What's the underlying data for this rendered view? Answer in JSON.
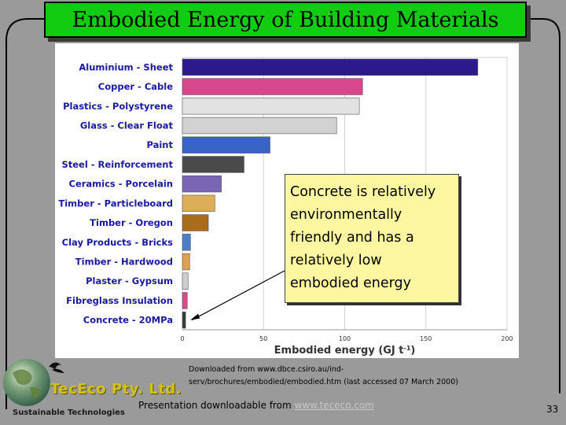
{
  "slide": {
    "title": "Embodied Energy of Building Materials",
    "callout": "Concrete is relatively environmentally friendly and has a relatively low embodied energy",
    "source_line1": "Downloaded from www.dbce.csiro.au/ind-",
    "source_line2": "serv/brochures/embodied/embodied.htm (last accessed 07 March 2000)",
    "footer_prefix": "Presentation downloadable from ",
    "footer_link": "www.tececo.com",
    "page_number": "33",
    "logo_company": "TecEco Pty. Ltd.",
    "logo_tagline": "Sustainable Technologies",
    "colors": {
      "title_bg": "#11cc11",
      "slide_bg": "#9a9a9a",
      "callout_bg": "#fef7a2"
    }
  },
  "chart_data": {
    "type": "bar",
    "orientation": "horizontal",
    "title": "",
    "xlabel": "Embodied energy (GJ t",
    "xlabel_sup": "-1",
    "xlabel_close": ")",
    "xlim": [
      0,
      200
    ],
    "xticks": [
      0,
      50,
      100,
      150,
      200
    ],
    "grid": true,
    "categories": [
      "Aluminium - Sheet",
      "Copper - Cable",
      "Plastics - Polystyrene",
      "Glass - Clear Float",
      "Paint",
      "Steel - Reinforcement",
      "Ceramics - Porcelain",
      "Timber - Particleboard",
      "Timber - Oregon",
      "Clay Products - Bricks",
      "Timber - Hardwood",
      "Plaster - Gypsum",
      "Fibreglass Insulation",
      "Concrete - 20MPa"
    ],
    "values": [
      182,
      111,
      109,
      95,
      54,
      38,
      24,
      20,
      16,
      5,
      4.5,
      3.5,
      3,
      2
    ],
    "colors": [
      "#2c1a8e",
      "#d8468c",
      "#e2e2e2",
      "#d2d2d2",
      "#3a63c8",
      "#4a4a4a",
      "#7a65b5",
      "#dcae58",
      "#aa6c1a",
      "#4a7ec6",
      "#e1a04c",
      "#cfcfcf",
      "#d84a8a",
      "#3a3a3a"
    ]
  }
}
